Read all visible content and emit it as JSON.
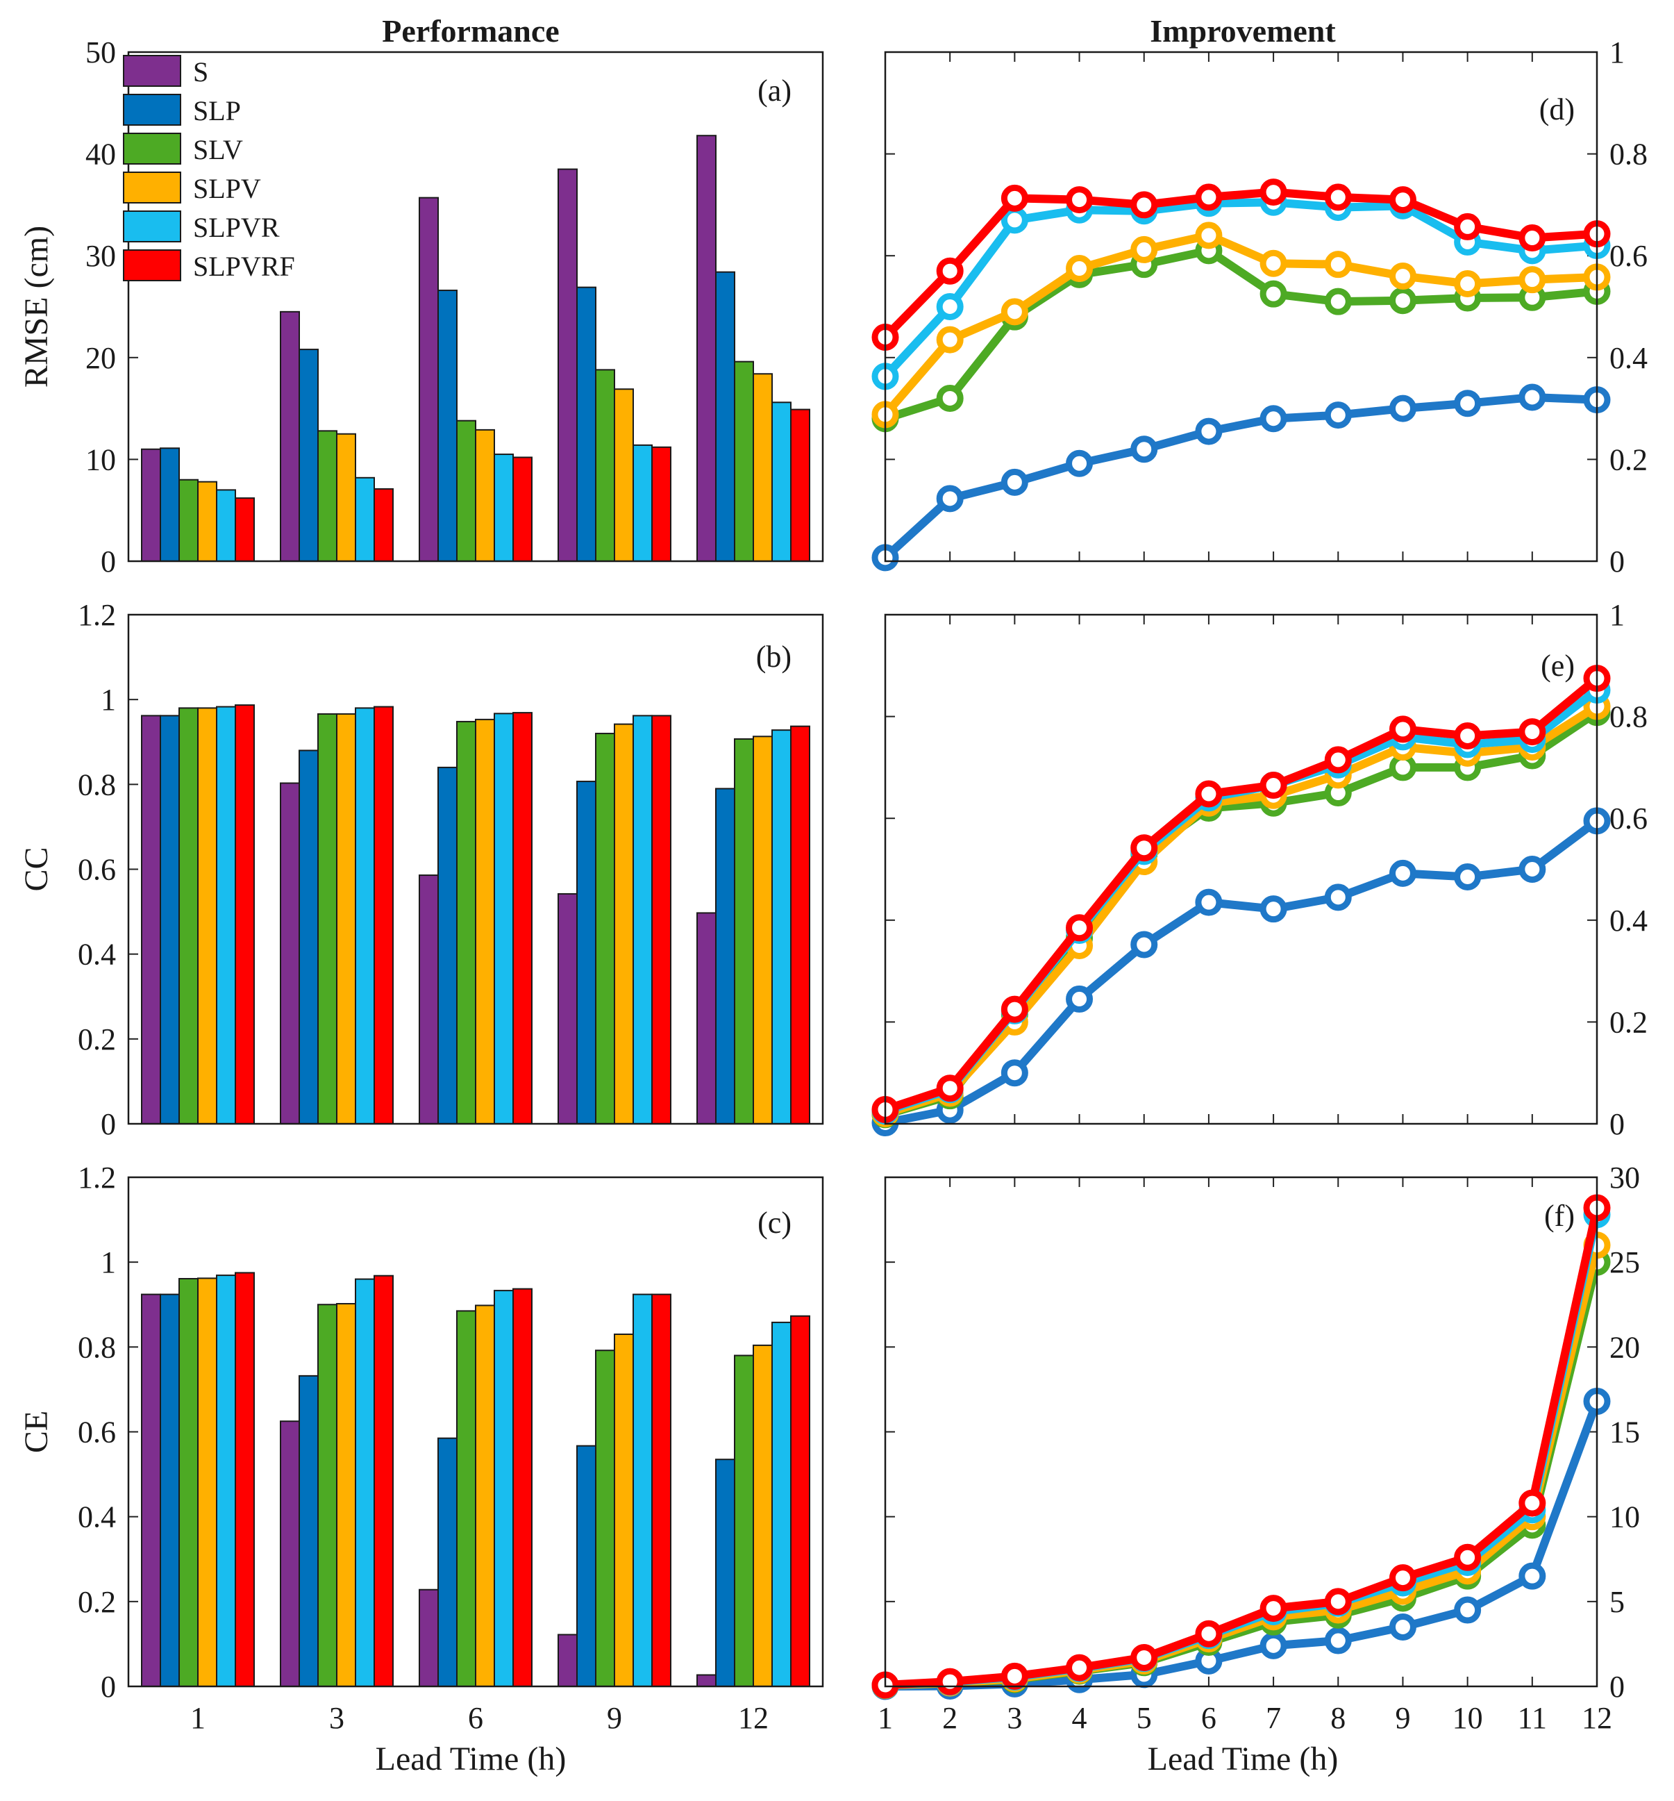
{
  "titles": {
    "left": "Performance",
    "right": "Improvement"
  },
  "legend": [
    "S",
    "SLP",
    "SLV",
    "SLPV",
    "SLPVR",
    "SLPVRF"
  ],
  "colors": {
    "S": "#7e2f8e",
    "SLP": "#0072bd",
    "SLV": "#4daa24",
    "SLPV": "#ffb000",
    "SLPVR": "#19bdef",
    "SLPVRF": "#ff0000",
    "SLP_line": "#1f78c8"
  },
  "x_label": "Lead Time (h)",
  "chart_data": [
    {
      "panel": "(a)",
      "type": "bar",
      "ylabel": "RMSE (cm)",
      "ylim": [
        0,
        50
      ],
      "yticks": [
        "0",
        "10",
        "20",
        "30",
        "40",
        "50"
      ],
      "categories": [
        "1",
        "3",
        "6",
        "9",
        "12"
      ],
      "series": [
        {
          "name": "S",
          "values": [
            11.0,
            24.5,
            35.7,
            38.5,
            41.8
          ]
        },
        {
          "name": "SLP",
          "values": [
            11.1,
            20.8,
            26.6,
            26.9,
            28.4
          ]
        },
        {
          "name": "SLV",
          "values": [
            8.0,
            12.8,
            13.8,
            18.8,
            19.6
          ]
        },
        {
          "name": "SLPV",
          "values": [
            7.8,
            12.5,
            12.9,
            16.9,
            18.4
          ]
        },
        {
          "name": "SLPVR",
          "values": [
            7.0,
            8.2,
            10.5,
            11.4,
            15.6
          ]
        },
        {
          "name": "SLPVRF",
          "values": [
            6.2,
            7.1,
            10.2,
            11.2,
            14.9
          ]
        }
      ]
    },
    {
      "panel": "(b)",
      "type": "bar",
      "ylabel": "CC",
      "ylim": [
        0,
        1.2
      ],
      "yticks": [
        "0",
        "0.2",
        "0.4",
        "0.6",
        "0.8",
        "1",
        "1.2"
      ],
      "categories": [
        "1",
        "3",
        "6",
        "9",
        "12"
      ],
      "series": [
        {
          "name": "S",
          "values": [
            0.962,
            0.803,
            0.586,
            0.542,
            0.497
          ]
        },
        {
          "name": "SLP",
          "values": [
            0.962,
            0.88,
            0.84,
            0.807,
            0.79
          ]
        },
        {
          "name": "SLV",
          "values": [
            0.98,
            0.966,
            0.948,
            0.92,
            0.907
          ]
        },
        {
          "name": "SLPV",
          "values": [
            0.98,
            0.966,
            0.953,
            0.942,
            0.913
          ]
        },
        {
          "name": "SLPVR",
          "values": [
            0.983,
            0.98,
            0.967,
            0.962,
            0.928
          ]
        },
        {
          "name": "SLPVRF",
          "values": [
            0.987,
            0.983,
            0.969,
            0.962,
            0.937
          ]
        }
      ]
    },
    {
      "panel": "(c)",
      "type": "bar",
      "ylabel": "CE",
      "ylim": [
        0,
        1.2
      ],
      "yticks": [
        "0",
        "0.2",
        "0.4",
        "0.6",
        "0.8",
        "1",
        "1.2"
      ],
      "categories": [
        "1",
        "3",
        "6",
        "9",
        "12"
      ],
      "series": [
        {
          "name": "S",
          "values": [
            0.924,
            0.625,
            0.228,
            0.122,
            0.027
          ]
        },
        {
          "name": "SLP",
          "values": [
            0.924,
            0.732,
            0.585,
            0.567,
            0.535
          ]
        },
        {
          "name": "SLV",
          "values": [
            0.961,
            0.9,
            0.885,
            0.792,
            0.78
          ]
        },
        {
          "name": "SLPV",
          "values": [
            0.962,
            0.902,
            0.898,
            0.83,
            0.804
          ]
        },
        {
          "name": "SLPVR",
          "values": [
            0.969,
            0.96,
            0.933,
            0.924,
            0.858
          ]
        },
        {
          "name": "SLPVRF",
          "values": [
            0.975,
            0.968,
            0.937,
            0.924,
            0.873
          ]
        }
      ]
    },
    {
      "panel": "(d)",
      "type": "line",
      "ylim": [
        0,
        1
      ],
      "yticks": [
        "0",
        "0.2",
        "0.4",
        "0.6",
        "0.8",
        "1"
      ],
      "x": [
        1,
        2,
        3,
        4,
        5,
        6,
        7,
        8,
        9,
        10,
        11,
        12
      ],
      "xticks": [
        "1",
        "2",
        "3",
        "4",
        "5",
        "6",
        "7",
        "8",
        "9",
        "10",
        "11",
        "12"
      ],
      "series": [
        {
          "name": "SLP",
          "values": [
            0.007,
            0.123,
            0.155,
            0.192,
            0.22,
            0.255,
            0.28,
            0.287,
            0.3,
            0.31,
            0.322,
            0.317
          ]
        },
        {
          "name": "SLV",
          "values": [
            0.28,
            0.32,
            0.48,
            0.563,
            0.583,
            0.61,
            0.525,
            0.51,
            0.512,
            0.517,
            0.518,
            0.53
          ]
        },
        {
          "name": "SLPV",
          "values": [
            0.288,
            0.435,
            0.49,
            0.575,
            0.612,
            0.64,
            0.585,
            0.583,
            0.56,
            0.545,
            0.553,
            0.558
          ]
        },
        {
          "name": "SLPVR",
          "values": [
            0.363,
            0.5,
            0.67,
            0.69,
            0.688,
            0.703,
            0.705,
            0.695,
            0.698,
            0.627,
            0.61,
            0.62
          ]
        },
        {
          "name": "SLPVRF",
          "values": [
            0.44,
            0.57,
            0.713,
            0.71,
            0.7,
            0.715,
            0.725,
            0.715,
            0.71,
            0.657,
            0.635,
            0.643
          ]
        }
      ]
    },
    {
      "panel": "(e)",
      "type": "line",
      "ylim": [
        0,
        1
      ],
      "yticks": [
        "0",
        "0.2",
        "0.4",
        "0.6",
        "0.8",
        "1"
      ],
      "x": [
        1,
        2,
        3,
        4,
        5,
        6,
        7,
        8,
        9,
        10,
        11,
        12
      ],
      "xticks": [
        "1",
        "2",
        "3",
        "4",
        "5",
        "6",
        "7",
        "8",
        "9",
        "10",
        "11",
        "12"
      ],
      "series": [
        {
          "name": "SLP",
          "values": [
            0.002,
            0.027,
            0.1,
            0.245,
            0.352,
            0.435,
            0.422,
            0.445,
            0.492,
            0.485,
            0.5,
            0.595
          ]
        },
        {
          "name": "SLV",
          "values": [
            0.018,
            0.055,
            0.215,
            0.365,
            0.53,
            0.62,
            0.63,
            0.65,
            0.7,
            0.7,
            0.723,
            0.808
          ]
        },
        {
          "name": "SLPV",
          "values": [
            0.02,
            0.06,
            0.2,
            0.35,
            0.515,
            0.63,
            0.645,
            0.685,
            0.74,
            0.728,
            0.74,
            0.82
          ]
        },
        {
          "name": "SLPVR",
          "values": [
            0.025,
            0.067,
            0.222,
            0.38,
            0.535,
            0.64,
            0.665,
            0.705,
            0.76,
            0.745,
            0.755,
            0.852
          ]
        },
        {
          "name": "SLPVRF",
          "values": [
            0.028,
            0.07,
            0.225,
            0.385,
            0.542,
            0.648,
            0.665,
            0.715,
            0.775,
            0.762,
            0.77,
            0.875
          ]
        }
      ]
    },
    {
      "panel": "(f)",
      "type": "line",
      "ylim": [
        0,
        30
      ],
      "yticks": [
        "0",
        "5",
        "10",
        "15",
        "20",
        "25",
        "30"
      ],
      "x": [
        1,
        2,
        3,
        4,
        5,
        6,
        7,
        8,
        9,
        10,
        11,
        12
      ],
      "xticks": [
        "1",
        "2",
        "3",
        "4",
        "5",
        "6",
        "7",
        "8",
        "9",
        "10",
        "11",
        "12"
      ],
      "series": [
        {
          "name": "SLP",
          "values": [
            0.0,
            0.02,
            0.15,
            0.4,
            0.7,
            1.5,
            2.4,
            2.7,
            3.5,
            4.5,
            6.5,
            16.8
          ]
        },
        {
          "name": "SLV",
          "values": [
            0.05,
            0.2,
            0.4,
            0.9,
            1.4,
            2.6,
            3.8,
            4.2,
            5.2,
            6.5,
            9.5,
            25.0
          ]
        },
        {
          "name": "SLPV",
          "values": [
            0.05,
            0.2,
            0.45,
            0.95,
            1.5,
            2.8,
            4.1,
            4.5,
            5.6,
            6.8,
            10.0,
            26.0
          ]
        },
        {
          "name": "SLPVR",
          "values": [
            0.07,
            0.25,
            0.55,
            1.05,
            1.65,
            3.0,
            4.4,
            4.9,
            6.1,
            7.3,
            10.4,
            27.8
          ]
        },
        {
          "name": "SLPVRF",
          "values": [
            0.08,
            0.28,
            0.6,
            1.1,
            1.7,
            3.1,
            4.6,
            5.0,
            6.4,
            7.6,
            10.8,
            28.2
          ]
        }
      ]
    }
  ]
}
